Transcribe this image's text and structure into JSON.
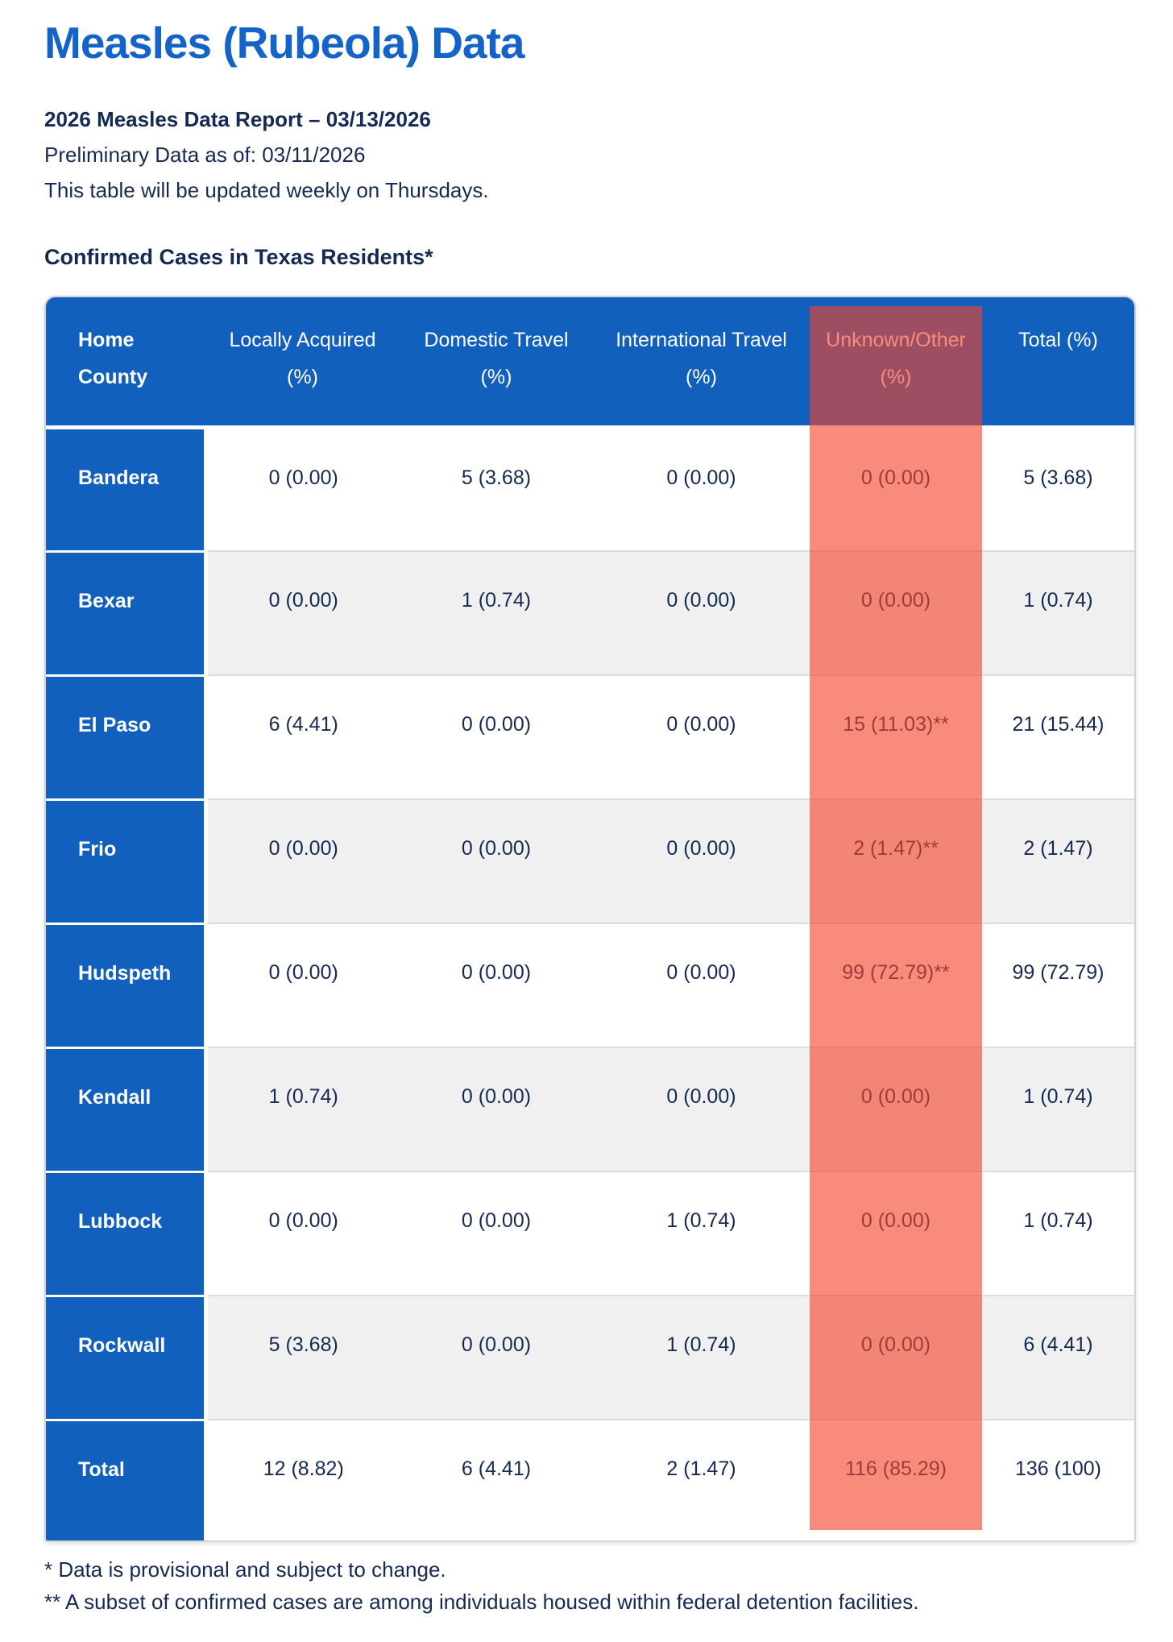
{
  "page": {
    "title": "Measles (Rubeola) Data",
    "report_line": "2026 Measles Data Report – 03/13/2026",
    "preliminary_line": "Preliminary Data as of: 03/11/2026",
    "update_line": "This table will be updated weekly on Thursdays.",
    "section_heading": "Confirmed Cases in Texas Residents*",
    "footnote_1": "* Data is provisional and subject to change.",
    "footnote_2": "** A subset of confirmed cases are among individuals housed within federal detention facilities."
  },
  "colors": {
    "title_blue": "#1463C8",
    "table_header_blue": "#1160BD",
    "body_navy": "#152A52",
    "row_stripe_gray": "#F0F0F0",
    "highlight_overlay": "rgba(244,67,42,0.62)"
  },
  "table": {
    "columns": [
      {
        "line1": "Home",
        "line2": "County",
        "highlighted": false
      },
      {
        "line1": "Locally Acquired",
        "line2": "(%)",
        "highlighted": false
      },
      {
        "line1": "Domestic Travel",
        "line2": "(%)",
        "highlighted": false
      },
      {
        "line1": "International Travel",
        "line2": "(%)",
        "highlighted": false
      },
      {
        "line1": "Unknown/Other",
        "line2": "(%)",
        "highlighted": true
      },
      {
        "line1": "Total (%)",
        "line2": "",
        "highlighted": false
      }
    ],
    "rows": [
      {
        "county": "Bandera",
        "values": [
          "0 (0.00)",
          "5 (3.68)",
          "0 (0.00)",
          "0 (0.00)",
          "5 (3.68)"
        ]
      },
      {
        "county": "Bexar",
        "values": [
          "0 (0.00)",
          "1 (0.74)",
          "0 (0.00)",
          "0 (0.00)",
          "1 (0.74)"
        ]
      },
      {
        "county": "El Paso",
        "values": [
          "6 (4.41)",
          "0 (0.00)",
          "0 (0.00)",
          "15 (11.03)**",
          "21 (15.44)"
        ]
      },
      {
        "county": "Frio",
        "values": [
          "0 (0.00)",
          "0 (0.00)",
          "0 (0.00)",
          "2 (1.47)**",
          "2 (1.47)"
        ]
      },
      {
        "county": "Hudspeth",
        "values": [
          "0 (0.00)",
          "0 (0.00)",
          "0 (0.00)",
          "99 (72.79)**",
          "99 (72.79)"
        ]
      },
      {
        "county": "Kendall",
        "values": [
          "1 (0.74)",
          "0 (0.00)",
          "0 (0.00)",
          "0 (0.00)",
          "1 (0.74)"
        ]
      },
      {
        "county": "Lubbock",
        "values": [
          "0 (0.00)",
          "0 (0.00)",
          "1 (0.74)",
          "0 (0.00)",
          "1 (0.74)"
        ]
      },
      {
        "county": "Rockwall",
        "values": [
          "5 (3.68)",
          "0 (0.00)",
          "1 (0.74)",
          "0 (0.00)",
          "6 (4.41)"
        ]
      },
      {
        "county": "Total",
        "values": [
          "12 (8.82)",
          "6 (4.41)",
          "2 (1.47)",
          "116 (85.29)",
          "136 (100)"
        ]
      }
    ]
  }
}
